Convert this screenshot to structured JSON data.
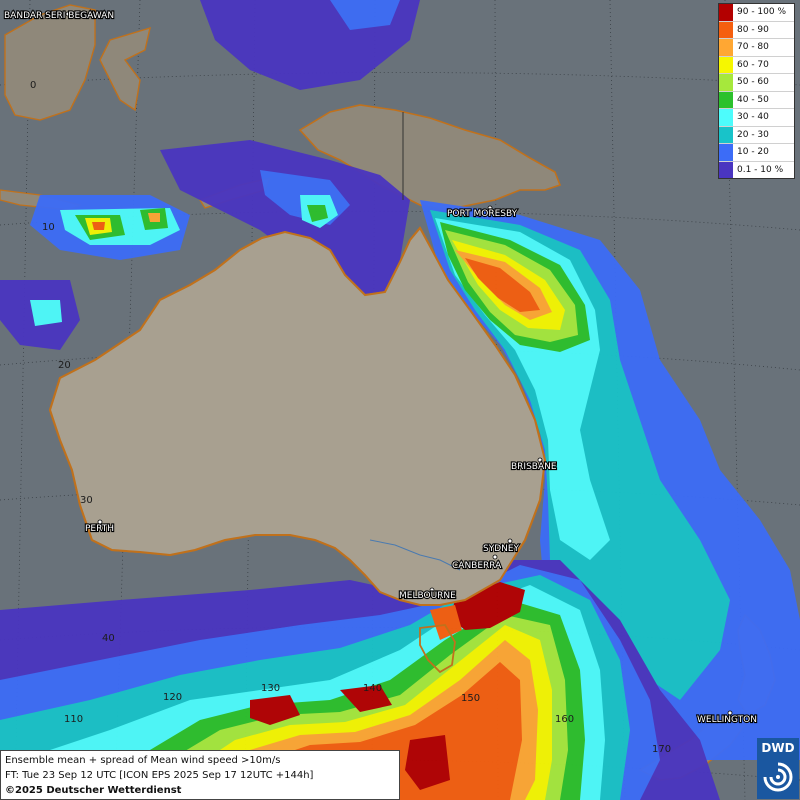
{
  "legend": {
    "items": [
      {
        "label": "90 - 100 %",
        "color": "#b30000"
      },
      {
        "label": "80 - 90",
        "color": "#f55f0f"
      },
      {
        "label": "70 - 80",
        "color": "#ffa733"
      },
      {
        "label": "60 - 70",
        "color": "#f6f700"
      },
      {
        "label": "50 - 60",
        "color": "#a6e83c"
      },
      {
        "label": "40 - 50",
        "color": "#2cc12c"
      },
      {
        "label": "30 - 40",
        "color": "#4dfcfc"
      },
      {
        "label": "20 - 30",
        "color": "#18c3c9"
      },
      {
        "label": "10 - 20",
        "color": "#3c6cf7"
      },
      {
        "label": "0.1 - 10 %",
        "color": "#4a35c0"
      }
    ]
  },
  "cities": {
    "bandar": "BANDAR SERI BEGAWAN",
    "port_moresby": "PORT MORESBY",
    "brisbane": "BRISBANE",
    "perth": "PERTH",
    "sydney": "SYDNEY",
    "canberra": "CANBERRA",
    "melbourne": "MELBOURNE",
    "wellington": "WELLINGTON"
  },
  "gridlabels": {
    "lat0": "0",
    "lat10": "10",
    "lat20": "20",
    "lat30": "30",
    "lat40": "40",
    "lon110": "110",
    "lon120": "120",
    "lon130": "130",
    "lon140": "140",
    "lon150": "150",
    "lon160": "160",
    "lon170": "170"
  },
  "info": {
    "line1": "Ensemble mean + spread of Mean wind speed >10m/s",
    "line2": "FT: Tue 23 Sep 12 UTC [ICON EPS 2025 Sep 17 12UTC +144h]",
    "copyright": "©2025 Deutscher Wetterdienst"
  },
  "logo": {
    "text": "DWD",
    "icon": "dwd-swirl-icon"
  },
  "colors": {
    "ocean": "#69727a",
    "land": "#a8a090",
    "coast": "#c0711c"
  }
}
